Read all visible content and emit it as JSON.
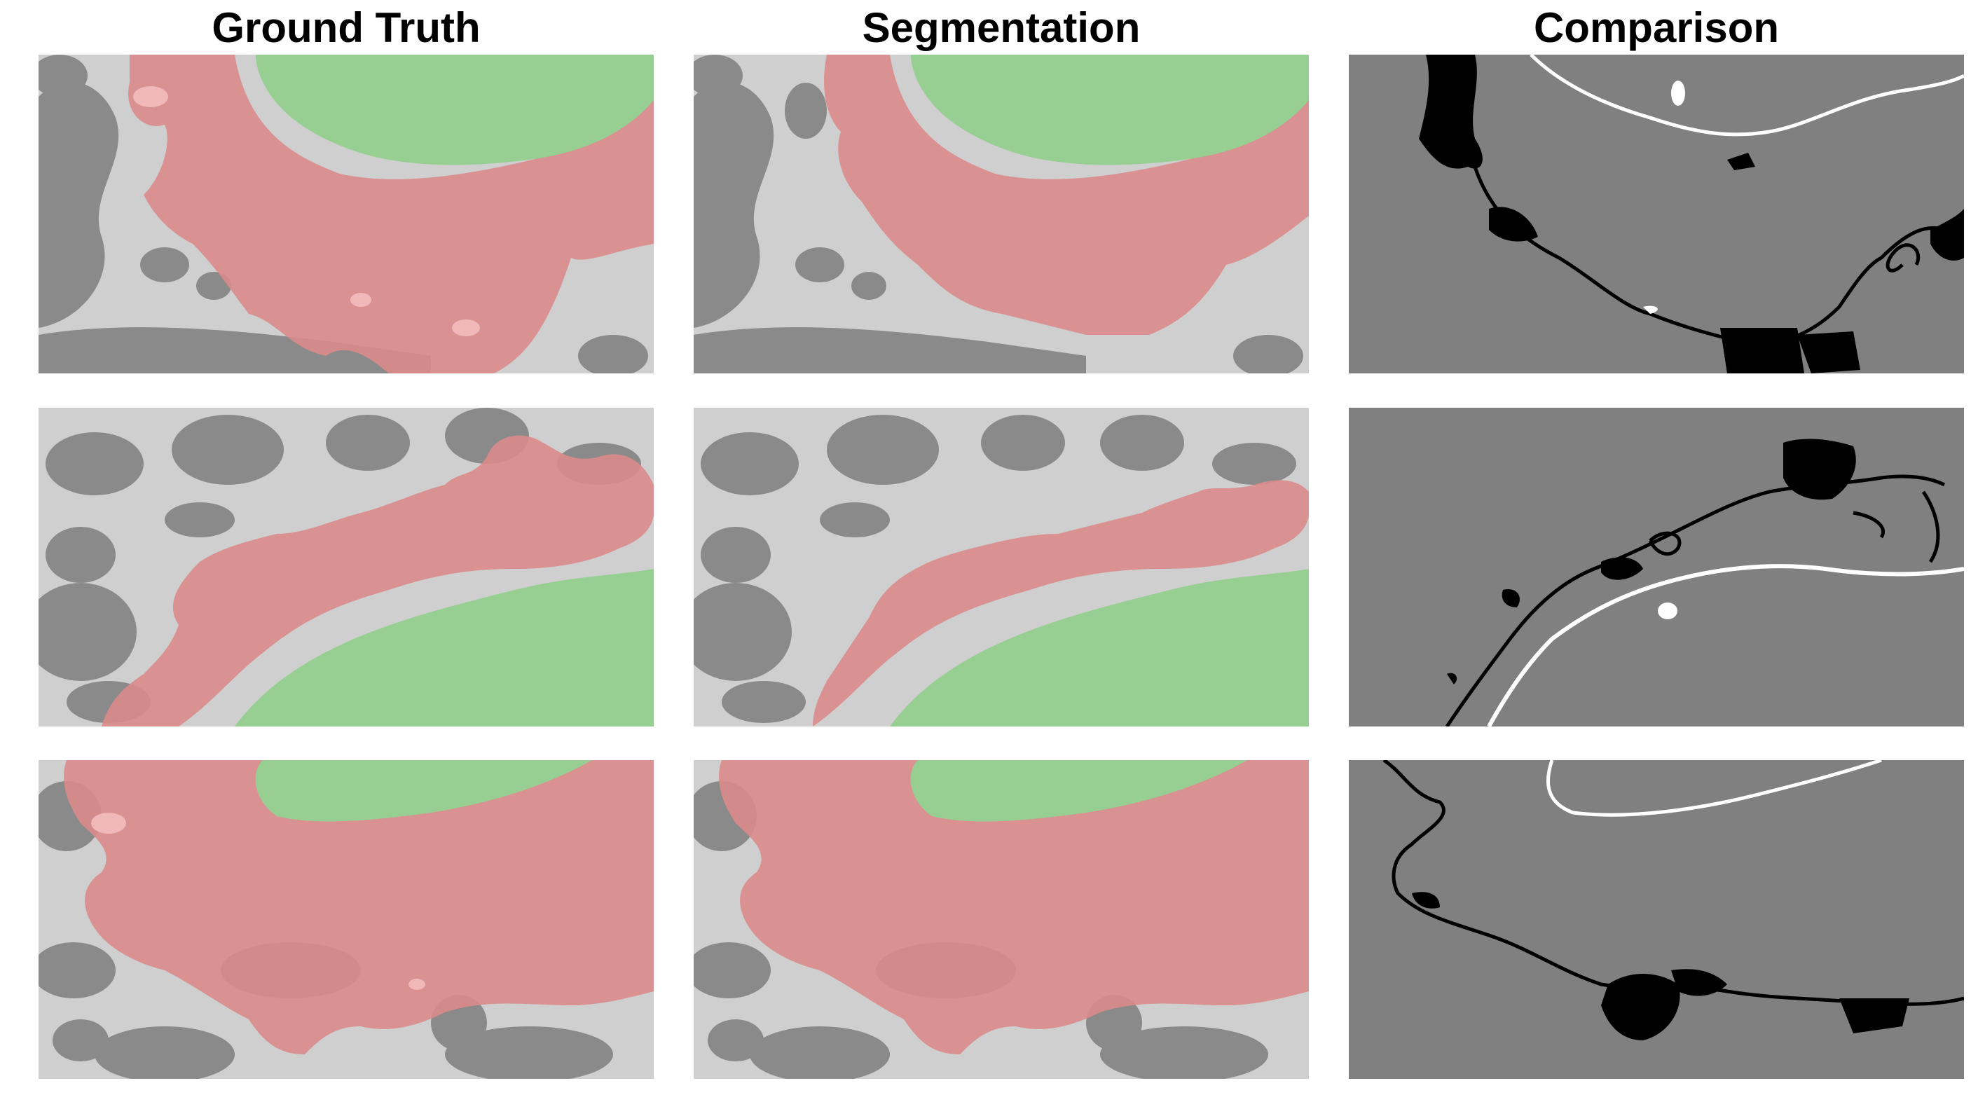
{
  "columns": [
    {
      "title": "Ground Truth"
    },
    {
      "title": "Segmentation"
    },
    {
      "title": "Comparison"
    }
  ],
  "colors": {
    "em_background": "#cfcfcf",
    "em_cell": "#808080",
    "red_overlay": "#d9898a",
    "green_overlay": "#97cf93",
    "comparison_bg": "#808080",
    "comparison_fn": "#000000",
    "comparison_fp": "#ffffff"
  },
  "rows": [
    {
      "panels": [
        "ground-truth",
        "segmentation",
        "comparison"
      ]
    },
    {
      "panels": [
        "ground-truth",
        "segmentation",
        "comparison"
      ]
    },
    {
      "panels": [
        "ground-truth",
        "segmentation",
        "comparison"
      ]
    }
  ]
}
